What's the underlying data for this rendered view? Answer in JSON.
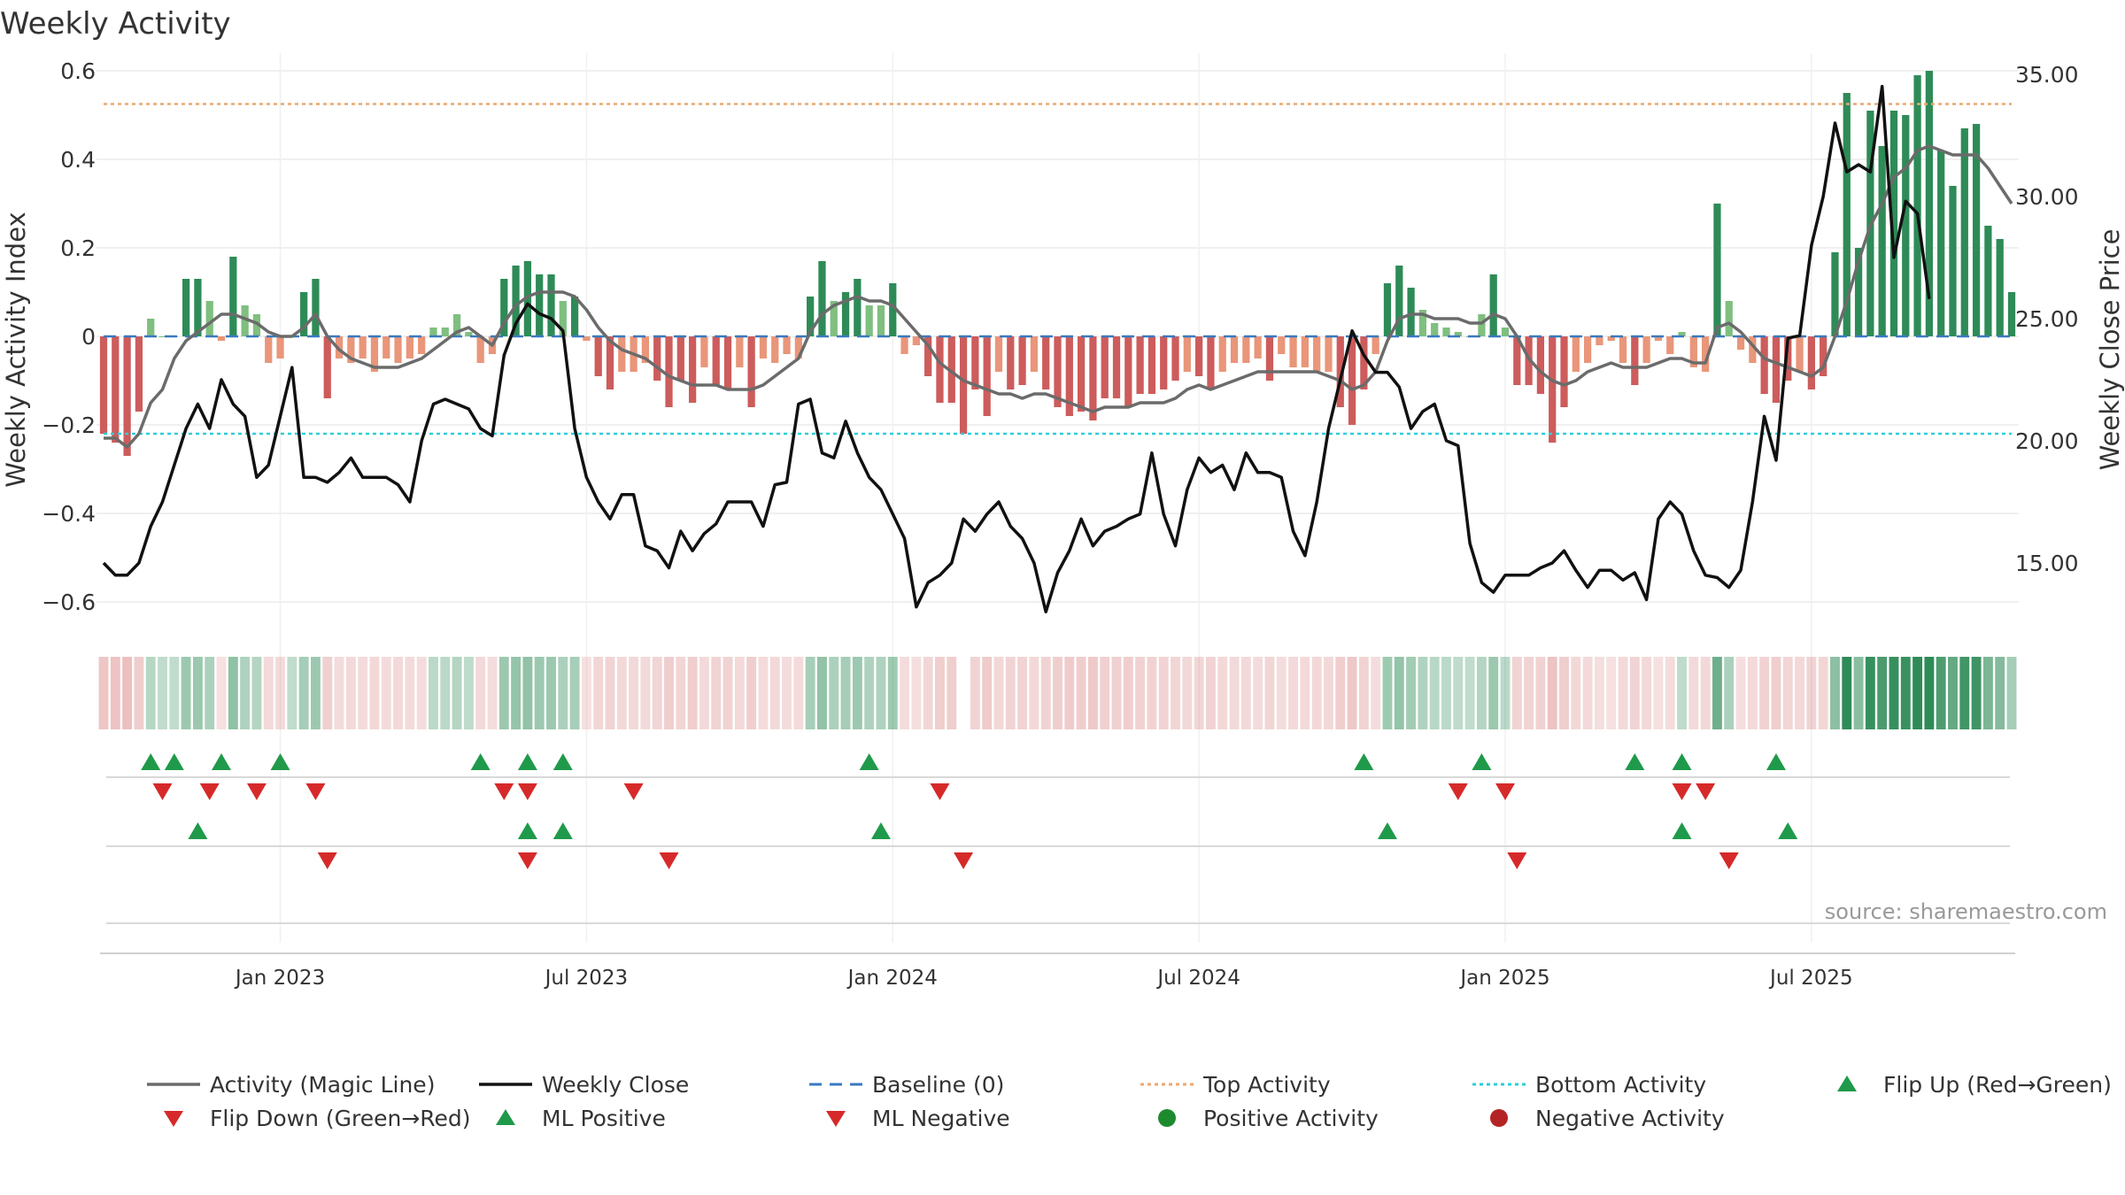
{
  "chart_data": {
    "type": "bar",
    "title": "Weekly Activity",
    "ylabel": "Weekly Activity Index",
    "y2label": "Weekly Close Price",
    "ylim": [
      -0.65,
      0.62
    ],
    "y2lim": [
      12.5,
      35.5
    ],
    "y_ticks": [
      "0.6",
      "0.4",
      "0.2",
      "0",
      "−0.2",
      "−0.4",
      "−0.6"
    ],
    "y_tick_values": [
      0.6,
      0.4,
      0.2,
      0,
      -0.2,
      -0.4,
      -0.6
    ],
    "y2_ticks": [
      "35.00",
      "30.00",
      "25.00",
      "20.00",
      "15.00"
    ],
    "y2_tick_values": [
      35,
      30,
      25,
      20,
      15
    ],
    "x_ticks": [
      "Jan 2023",
      "Jul 2023",
      "Jan 2024",
      "Jul 2024",
      "Jan 2025",
      "Jul 2025"
    ],
    "x_tick_weeks": [
      15,
      41,
      67,
      93,
      119,
      145
    ],
    "top_activity": 0.525,
    "bottom_activity": -0.22,
    "source": "source: sharemaestro.com",
    "activity": [
      -0.22,
      -0.24,
      -0.27,
      -0.17,
      0.04,
      0.0,
      0.0,
      0.13,
      0.13,
      0.08,
      -0.01,
      0.18,
      0.07,
      0.05,
      -0.06,
      -0.05,
      0.0,
      0.1,
      0.13,
      -0.14,
      -0.05,
      -0.06,
      -0.05,
      -0.08,
      -0.05,
      -0.06,
      -0.05,
      -0.04,
      0.02,
      0.02,
      0.05,
      0.01,
      -0.06,
      -0.04,
      0.13,
      0.16,
      0.17,
      0.14,
      0.14,
      0.08,
      0.09,
      -0.01,
      -0.09,
      -0.12,
      -0.08,
      -0.08,
      -0.06,
      -0.1,
      -0.16,
      -0.1,
      -0.15,
      -0.07,
      -0.11,
      -0.12,
      -0.07,
      -0.16,
      -0.05,
      -0.06,
      -0.04,
      -0.05,
      0.09,
      0.17,
      0.08,
      0.1,
      0.13,
      0.07,
      0.07,
      0.12,
      -0.04,
      -0.02,
      -0.09,
      -0.15,
      -0.15,
      -0.22,
      -0.12,
      -0.18,
      -0.08,
      -0.12,
      -0.11,
      -0.08,
      -0.12,
      -0.16,
      -0.18,
      -0.17,
      -0.19,
      -0.14,
      -0.14,
      -0.16,
      -0.13,
      -0.13,
      -0.12,
      -0.1,
      -0.08,
      -0.09,
      -0.12,
      -0.08,
      -0.06,
      -0.06,
      -0.05,
      -0.1,
      -0.04,
      -0.07,
      -0.07,
      -0.08,
      -0.08,
      -0.16,
      -0.2,
      -0.12,
      -0.04,
      0.12,
      0.16,
      0.11,
      0.06,
      0.03,
      0.02,
      0.01,
      0.0,
      0.05,
      0.14,
      0.02,
      -0.11,
      -0.11,
      -0.13,
      -0.24,
      -0.16,
      -0.08,
      -0.06,
      -0.02,
      -0.01,
      -0.06,
      -0.11,
      -0.06,
      -0.01,
      -0.04,
      0.01,
      -0.07,
      -0.08,
      0.3,
      0.08,
      -0.03,
      -0.06,
      -0.13,
      -0.15,
      -0.1,
      -0.08,
      -0.12,
      -0.09,
      0.19,
      0.55,
      0.2,
      0.51,
      0.43,
      0.51,
      0.5,
      0.59,
      0.6,
      0.42,
      0.34,
      0.47,
      0.48,
      0.25,
      0.22,
      0.1
    ],
    "magic_line": [
      -0.23,
      -0.23,
      -0.25,
      -0.22,
      -0.15,
      -0.12,
      -0.05,
      -0.01,
      0.01,
      0.03,
      0.05,
      0.05,
      0.04,
      0.03,
      0.01,
      0.0,
      0.0,
      0.02,
      0.05,
      0.0,
      -0.03,
      -0.05,
      -0.06,
      -0.07,
      -0.07,
      -0.07,
      -0.06,
      -0.05,
      -0.03,
      -0.01,
      0.01,
      0.02,
      0.0,
      -0.02,
      0.03,
      0.07,
      0.09,
      0.1,
      0.1,
      0.1,
      0.09,
      0.06,
      0.02,
      -0.01,
      -0.03,
      -0.04,
      -0.05,
      -0.07,
      -0.09,
      -0.1,
      -0.11,
      -0.11,
      -0.11,
      -0.12,
      -0.12,
      -0.12,
      -0.11,
      -0.09,
      -0.07,
      -0.05,
      0.01,
      0.05,
      0.07,
      0.08,
      0.09,
      0.08,
      0.08,
      0.07,
      0.04,
      0.01,
      -0.02,
      -0.06,
      -0.08,
      -0.1,
      -0.11,
      -0.12,
      -0.13,
      -0.13,
      -0.14,
      -0.13,
      -0.13,
      -0.14,
      -0.15,
      -0.16,
      -0.17,
      -0.16,
      -0.16,
      -0.16,
      -0.15,
      -0.15,
      -0.15,
      -0.14,
      -0.12,
      -0.11,
      -0.12,
      -0.11,
      -0.1,
      -0.09,
      -0.08,
      -0.08,
      -0.08,
      -0.08,
      -0.08,
      -0.08,
      -0.09,
      -0.1,
      -0.12,
      -0.11,
      -0.08,
      -0.01,
      0.04,
      0.05,
      0.05,
      0.04,
      0.04,
      0.04,
      0.03,
      0.03,
      0.05,
      0.04,
      0.0,
      -0.05,
      -0.08,
      -0.1,
      -0.11,
      -0.1,
      -0.08,
      -0.07,
      -0.06,
      -0.07,
      -0.07,
      -0.07,
      -0.06,
      -0.05,
      -0.05,
      -0.06,
      -0.06,
      0.02,
      0.03,
      0.01,
      -0.02,
      -0.05,
      -0.06,
      -0.07,
      -0.08,
      -0.09,
      -0.07,
      0.0,
      0.08,
      0.17,
      0.25,
      0.3,
      0.36,
      0.38,
      0.42,
      0.43,
      0.42,
      0.41,
      0.41,
      0.41,
      0.38,
      0.34,
      0.3
    ],
    "weekly_close": [
      15.0,
      14.5,
      14.5,
      15.0,
      16.5,
      17.5,
      19.0,
      20.5,
      21.5,
      20.5,
      22.5,
      21.5,
      21.0,
      18.5,
      19.0,
      21.0,
      23.0,
      18.5,
      18.5,
      18.3,
      18.7,
      19.3,
      18.5,
      18.5,
      18.5,
      18.2,
      17.5,
      20.0,
      21.5,
      21.7,
      21.5,
      21.3,
      20.5,
      20.2,
      23.5,
      24.8,
      25.6,
      25.2,
      25.0,
      24.5,
      20.5,
      18.5,
      17.5,
      16.8,
      17.8,
      17.8,
      15.7,
      15.5,
      14.8,
      16.3,
      15.5,
      16.2,
      16.6,
      17.5,
      17.5,
      17.5,
      16.5,
      18.2,
      18.3,
      21.5,
      21.7,
      19.5,
      19.3,
      20.8,
      19.5,
      18.5,
      18.0,
      17.0,
      16.0,
      13.2,
      14.2,
      14.5,
      15.0,
      16.8,
      16.3,
      17.0,
      17.5,
      16.5,
      16.0,
      15.0,
      13.0,
      14.6,
      15.5,
      16.8,
      15.7,
      16.3,
      16.5,
      16.8,
      17.0,
      19.5,
      17.0,
      15.7,
      18.0,
      19.3,
      18.7,
      19.0,
      18.0,
      19.5,
      18.7,
      18.7,
      18.5,
      16.3,
      15.3,
      17.5,
      20.5,
      22.5,
      24.5,
      23.5,
      22.8,
      22.8,
      22.2,
      20.5,
      21.2,
      21.5,
      20.0,
      19.8,
      15.8,
      14.2,
      13.8,
      14.5,
      14.5,
      14.5,
      14.8,
      15.0,
      15.5,
      14.7,
      14.0,
      14.7,
      14.7,
      14.3,
      14.6,
      13.5,
      16.8,
      17.5,
      17.0,
      15.5,
      14.5,
      14.4,
      14.0,
      14.7,
      17.5,
      21.0,
      19.2,
      24.2,
      24.3,
      28.0,
      30.0,
      33.0,
      31.0,
      31.3,
      31.0,
      34.5,
      27.5,
      29.8,
      29.3,
      25.8
    ],
    "flip_up_weeks": [
      4,
      6,
      10,
      15,
      32,
      36,
      39,
      65,
      107,
      117,
      130,
      134,
      142
    ],
    "flip_down_weeks": [
      5,
      9,
      13,
      18,
      34,
      36,
      45,
      71,
      115,
      119,
      134,
      136
    ],
    "ml_positive_weeks": [
      8,
      36,
      39,
      66,
      109,
      134,
      143
    ],
    "ml_negative_weeks": [
      19,
      36,
      48,
      73,
      120,
      138
    ],
    "legend": [
      {
        "label": "Activity (Magic Line)",
        "kind": "line",
        "color": "#6b6b6b"
      },
      {
        "label": "Weekly Close",
        "kind": "line",
        "color": "#111111"
      },
      {
        "label": "Baseline (0)",
        "kind": "dash",
        "color": "#3a7ac0"
      },
      {
        "label": "Top Activity",
        "kind": "dot",
        "color": "#e8a86e"
      },
      {
        "label": "Bottom Activity",
        "kind": "dot",
        "color": "#2ccfd8"
      },
      {
        "label": "Flip Up (Red→Green)",
        "kind": "tri-up",
        "color": "#1f9a4a"
      },
      {
        "label": "Flip Down (Green→Red)",
        "kind": "tri-down",
        "color": "#d62a2a"
      },
      {
        "label": "ML Positive",
        "kind": "tri-up",
        "color": "#1f9a4a"
      },
      {
        "label": "ML Negative",
        "kind": "tri-down",
        "color": "#d62a2a"
      },
      {
        "label": "Positive Activity",
        "kind": "circle",
        "color": "#1e8a2e"
      },
      {
        "label": "Negative Activity",
        "kind": "circle",
        "color": "#b52424"
      }
    ],
    "colors": {
      "pos_strong": "#2e8b57",
      "pos_light": "#7fbf7f",
      "neg_strong": "#cd5c5c",
      "neg_light": "#e9967a",
      "magic": "#6b6b6b",
      "close": "#111111",
      "baseline": "#3a7ac0",
      "top": "#e8a86e",
      "bottom": "#2ccfd8",
      "up": "#1f9a4a",
      "down": "#d62a2a"
    }
  }
}
